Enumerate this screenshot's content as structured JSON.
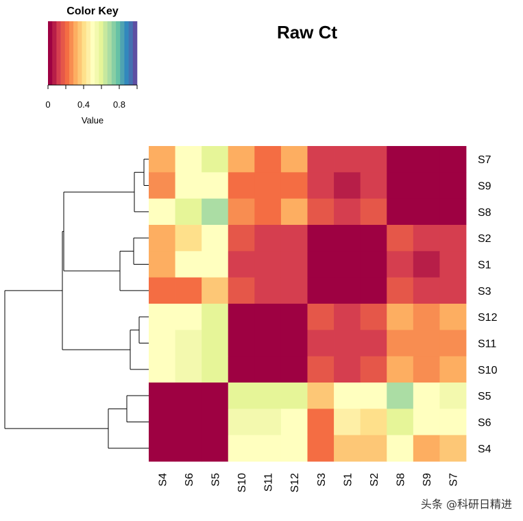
{
  "chart_data": {
    "type": "heatmap",
    "title": "Raw Ct",
    "rows": [
      "S7",
      "S9",
      "S8",
      "S2",
      "S1",
      "S3",
      "S12",
      "S11",
      "S10",
      "S5",
      "S6",
      "S4"
    ],
    "cols": [
      "S4",
      "S6",
      "S5",
      "S10",
      "S11",
      "S12",
      "S3",
      "S1",
      "S2",
      "S8",
      "S9",
      "S7"
    ],
    "values": [
      [
        0.32,
        0.52,
        0.58,
        0.28,
        0.22,
        0.28,
        0.12,
        0.08,
        0.12,
        0,
        0,
        0
      ],
      [
        0.26,
        0.5,
        0.52,
        0.22,
        0.22,
        0.22,
        0.08,
        0.04,
        0.08,
        0,
        0,
        0
      ],
      [
        0.5,
        0.6,
        0.7,
        0.26,
        0.22,
        0.3,
        0.14,
        0.08,
        0.16,
        0,
        0,
        0
      ],
      [
        0.32,
        0.4,
        0.52,
        0.16,
        0.08,
        0.12,
        0,
        0,
        0,
        0.16,
        0.08,
        0.12
      ],
      [
        0.32,
        0.5,
        0.52,
        0.12,
        0.08,
        0.08,
        0,
        0,
        0,
        0.08,
        0.04,
        0.08
      ],
      [
        0.22,
        0.22,
        0.36,
        0.16,
        0.08,
        0.12,
        0,
        0,
        0,
        0.16,
        0.08,
        0.12
      ],
      [
        0.52,
        0.52,
        0.58,
        0,
        0,
        0,
        0.14,
        0.1,
        0.14,
        0.28,
        0.24,
        0.3
      ],
      [
        0.52,
        0.56,
        0.58,
        0,
        0,
        0,
        0.1,
        0.1,
        0.1,
        0.24,
        0.24,
        0.24
      ],
      [
        0.52,
        0.56,
        0.58,
        0,
        0,
        0,
        0.16,
        0.12,
        0.16,
        0.28,
        0.24,
        0.3
      ],
      [
        0,
        0,
        0,
        0.58,
        0.58,
        0.58,
        0.36,
        0.5,
        0.52,
        0.68,
        0.52,
        0.56
      ],
      [
        0,
        0,
        0,
        0.56,
        0.56,
        0.52,
        0.22,
        0.46,
        0.4,
        0.6,
        0.48,
        0.52
      ],
      [
        0,
        0,
        0,
        0.52,
        0.52,
        0.52,
        0.22,
        0.36,
        0.36,
        0.5,
        0.28,
        0.36
      ]
    ],
    "color_key": {
      "title": "Color Key",
      "xlabel": "Value",
      "ticks": [
        "0",
        "0.4",
        "0.8"
      ],
      "range": [
        0,
        1
      ],
      "palette": [
        "#9E0142",
        "#B71E48",
        "#D53E4F",
        "#E55749",
        "#F46D43",
        "#F88D51",
        "#FDAE61",
        "#FDC776",
        "#FEE08B",
        "#FEEFA6",
        "#FFFFBF",
        "#F3F9AE",
        "#E6F598",
        "#C7E89E",
        "#ABDDA4",
        "#88CFA4",
        "#66C2A5",
        "#4FA3B2",
        "#3288BD",
        "#4470B1",
        "#5E4FA2"
      ]
    },
    "dendrogram": "rows"
  },
  "watermark": "头条 @科研日精进"
}
